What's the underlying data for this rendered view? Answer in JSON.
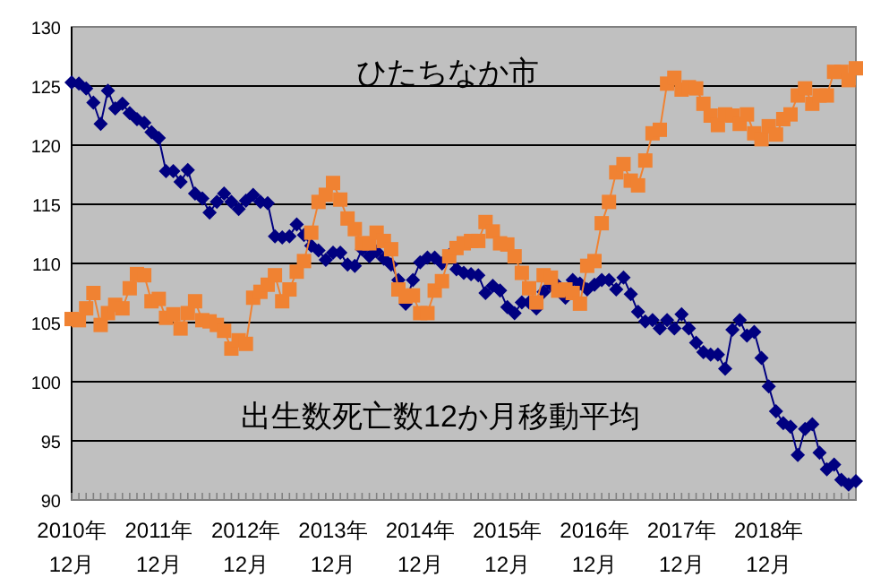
{
  "chart_data": {
    "type": "line",
    "title": "ひたちなか市",
    "annotations": [
      "出生数死亡数12か月移動平均"
    ],
    "categories": [
      "2010年\n12月",
      null,
      null,
      null,
      null,
      null,
      null,
      null,
      null,
      null,
      null,
      null,
      "2011年\n12月",
      null,
      null,
      null,
      null,
      null,
      null,
      null,
      null,
      null,
      null,
      null,
      "2012年\n12月",
      null,
      null,
      null,
      null,
      null,
      null,
      null,
      null,
      null,
      null,
      null,
      "2013年\n12月",
      null,
      null,
      null,
      null,
      null,
      null,
      null,
      null,
      null,
      null,
      null,
      "2014年\n12月",
      null,
      null,
      null,
      null,
      null,
      null,
      null,
      null,
      null,
      null,
      null,
      "2015年\n12月",
      null,
      null,
      null,
      null,
      null,
      null,
      null,
      null,
      null,
      null,
      null,
      "2016年\n12月",
      null,
      null,
      null,
      null,
      null,
      null,
      null,
      null,
      null,
      null,
      null,
      "2017年\n12月",
      null,
      null,
      null,
      null,
      null,
      null,
      null,
      null,
      null,
      null,
      null,
      "2018年\n12月",
      null,
      null,
      null,
      null,
      null,
      null,
      null,
      null,
      null,
      null,
      null,
      null
    ],
    "series": [
      {
        "color": "#000080",
        "marker": "diamond",
        "values": [
          125.3,
          125.2,
          124.8,
          123.6,
          121.8,
          124.6,
          123.1,
          123.5,
          122.7,
          122.2,
          121.9,
          121.1,
          120.6,
          117.8,
          117.8,
          116.9,
          117.9,
          115.9,
          115.5,
          114.3,
          115.2,
          115.9,
          115.2,
          114.6,
          115.3,
          115.8,
          115.2,
          115.1,
          112.3,
          112.2,
          112.3,
          113.3,
          112.4,
          111.5,
          111.1,
          110.3,
          110.9,
          110.9,
          109.9,
          109.8,
          111.2,
          110.6,
          111.0,
          110.4,
          109.9,
          108.6,
          106.6,
          108.6,
          110.1,
          110.5,
          110.5,
          110.0,
          110.7,
          109.5,
          109.2,
          109.1,
          109.0,
          107.5,
          108.1,
          107.7,
          106.3,
          105.8,
          106.7,
          106.7,
          106.2,
          107.6,
          108.2,
          108.1,
          107.1,
          108.6,
          108.3,
          107.8,
          108.2,
          108.6,
          108.6,
          107.8,
          108.8,
          107.4,
          105.9,
          105.1,
          105.2,
          104.5,
          105.2,
          104.5,
          105.7,
          104.5,
          103.3,
          102.5,
          102.3,
          102.3,
          101.1,
          104.4,
          105.2,
          103.9,
          104.2,
          102.0,
          99.6,
          97.5,
          96.5,
          96.2,
          93.8,
          96.0,
          96.4,
          94.0,
          92.6,
          93.0,
          91.7,
          91.3,
          91.6
        ]
      },
      {
        "color": "#f08232",
        "marker": "square",
        "values": [
          105.3,
          105.2,
          106.2,
          107.5,
          104.8,
          105.8,
          106.5,
          106.2,
          107.9,
          109.1,
          109.0,
          106.8,
          107.0,
          105.4,
          105.7,
          104.5,
          105.8,
          106.8,
          105.2,
          105.1,
          104.8,
          104.3,
          102.8,
          103.5,
          103.2,
          107.1,
          107.6,
          108.2,
          109.0,
          106.8,
          107.8,
          109.3,
          110.2,
          112.6,
          115.2,
          115.8,
          116.8,
          115.4,
          113.8,
          112.9,
          111.7,
          111.7,
          112.6,
          111.9,
          111.2,
          107.8,
          107.2,
          107.3,
          105.8,
          105.8,
          107.7,
          108.5,
          110.6,
          111.3,
          111.7,
          111.9,
          111.9,
          113.5,
          112.7,
          111.7,
          111.6,
          110.6,
          109.2,
          107.9,
          106.7,
          109.0,
          108.8,
          107.7,
          107.8,
          107.5,
          106.6,
          109.8,
          110.2,
          113.4,
          115.2,
          117.7,
          118.4,
          117.0,
          116.6,
          118.7,
          121.0,
          121.3,
          125.2,
          125.7,
          124.7,
          124.9,
          124.8,
          123.5,
          122.5,
          121.7,
          122.6,
          122.5,
          121.8,
          122.6,
          121.0,
          120.5,
          121.6,
          120.9,
          122.2,
          122.6,
          124.2,
          124.8,
          123.5,
          124.2,
          124.2,
          126.2,
          126.2,
          125.5,
          126.5
        ]
      }
    ],
    "ylim": [
      90,
      130
    ],
    "yticks": [
      90,
      95,
      100,
      105,
      110,
      115,
      120,
      125,
      130
    ],
    "grid": "y"
  }
}
